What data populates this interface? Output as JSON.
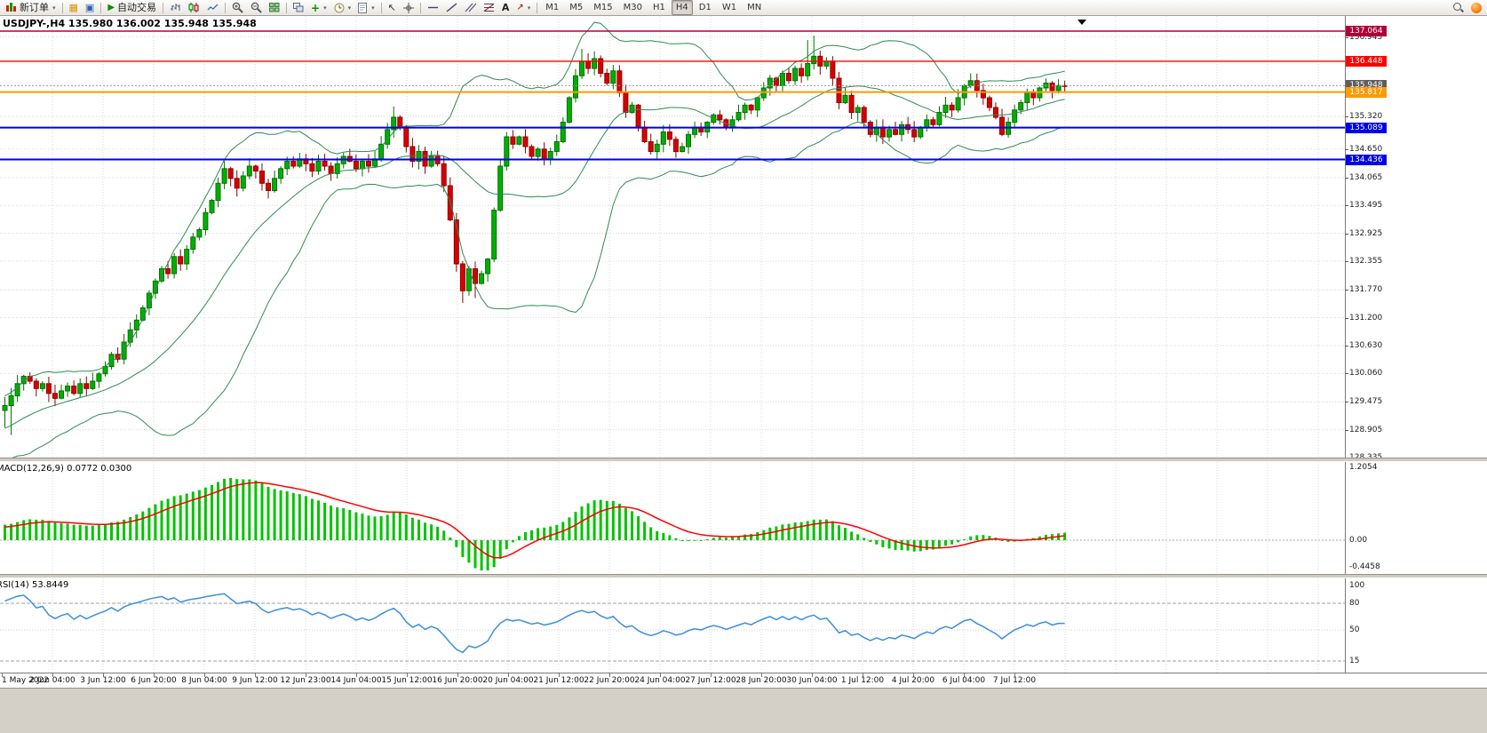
{
  "toolbar": {
    "new_order_label": "新订单",
    "auto_trading_label": "自动交易",
    "timeframes": [
      "M1",
      "M5",
      "M15",
      "M30",
      "H1",
      "H4",
      "D1",
      "W1",
      "MN"
    ],
    "active_timeframe": "H4",
    "items": [
      {
        "type": "button",
        "name": "new-order-button",
        "icon": "new-order",
        "label": "新订单",
        "dropdown": true
      },
      {
        "type": "sep"
      },
      {
        "type": "icon",
        "name": "market-watch-button",
        "icon": "market-watch"
      },
      {
        "type": "icon",
        "name": "navigator-button",
        "icon": "navigator"
      },
      {
        "type": "sep"
      },
      {
        "type": "button",
        "name": "auto-trading-button",
        "icon": "play",
        "label": "自动交易"
      },
      {
        "type": "sep"
      },
      {
        "type": "icon",
        "name": "bar-chart-button",
        "icon": "bars"
      },
      {
        "type": "icon",
        "name": "candlestick-chart-button",
        "icon": "candles"
      },
      {
        "type": "icon",
        "name": "line-chart-button",
        "icon": "line"
      },
      {
        "type": "sep"
      },
      {
        "type": "icon",
        "name": "zoom-in-button",
        "icon": "zoom-in"
      },
      {
        "type": "icon",
        "name": "zoom-out-button",
        "icon": "zoom-out"
      },
      {
        "type": "icon",
        "name": "tile-windows-button",
        "icon": "tile"
      },
      {
        "type": "sep"
      },
      {
        "type": "icon",
        "name": "cascade-windows-button",
        "icon": "cascade"
      },
      {
        "type": "icon",
        "name": "new-chart-button",
        "icon": "plus",
        "dropdown": true
      },
      {
        "type": "icon",
        "name": "periods-button",
        "icon": "clock",
        "dropdown": true
      },
      {
        "type": "icon",
        "name": "templates-button",
        "icon": "template",
        "dropdown": true
      },
      {
        "type": "sep"
      },
      {
        "type": "icon",
        "name": "cursor-button",
        "icon": "cursor"
      },
      {
        "type": "icon",
        "name": "crosshair-button",
        "icon": "crosshair"
      },
      {
        "type": "sep"
      },
      {
        "type": "icon",
        "name": "horizontal-line-button",
        "icon": "hline"
      },
      {
        "type": "icon",
        "name": "trendline-button",
        "icon": "tline"
      },
      {
        "type": "icon",
        "name": "equidistant-channel-button",
        "icon": "channel"
      },
      {
        "type": "icon",
        "name": "fibonacci-button",
        "icon": "fibo"
      },
      {
        "type": "icon",
        "name": "text-label-button",
        "icon": "text"
      },
      {
        "type": "icon",
        "name": "arrows-button",
        "icon": "arrow",
        "dropdown": true
      },
      {
        "type": "sep"
      },
      {
        "type": "timeframes"
      },
      {
        "type": "spacer"
      },
      {
        "type": "icon",
        "name": "search-button",
        "icon": "magnifier"
      },
      {
        "type": "icon",
        "name": "alert-badge",
        "icon": "dot"
      }
    ]
  },
  "chart": {
    "title": "USDJPY-,H4 135.980 136.002 135.948 135.948",
    "symbol": "USDJPY-",
    "timeframe": "H4"
  },
  "price_scale": {
    "labels": [
      "136.945",
      "135.320",
      "134.650",
      "134.065",
      "133.495",
      "132.925",
      "132.355",
      "131.770",
      "131.200",
      "130.630",
      "130.060",
      "129.475",
      "128.905",
      "128.335"
    ],
    "badges": [
      {
        "text": "137.064",
        "price": 137.064,
        "bg": "#B00038"
      },
      {
        "text": "136.448",
        "price": 136.448,
        "bg": "#FF0000"
      },
      {
        "text": "135.948",
        "price": 135.948,
        "bg": "#5E5E5E",
        "current": true
      },
      {
        "text": "135.817",
        "price": 135.817,
        "bg": "#FF9900"
      },
      {
        "text": "135.089",
        "price": 135.089,
        "bg": "#0000E6"
      },
      {
        "text": "134.436",
        "price": 134.436,
        "bg": "#0000E6"
      }
    ]
  },
  "macd_panel": {
    "label": "MACD(12,26,9) 0.0772 0.0300",
    "scale": [
      "1.2054",
      "0.00",
      "-0.4458"
    ],
    "histogram_color": "#00C400",
    "signal_color": "#FF0000"
  },
  "rsi_panel": {
    "label": "RSI(14) 53.8449",
    "scale": [
      "100",
      "80",
      "50",
      "15"
    ],
    "line_color": "#3B8EDE",
    "levels": [
      80,
      50,
      15
    ]
  },
  "time_axis": {
    "labels": [
      "1 May 2022",
      "2 Jun 04:00",
      "3 Jun 12:00",
      "6 Jun 20:00",
      "8 Jun 04:00",
      "9 Jun 12:00",
      "12 Jun 23:00",
      "14 Jun 04:00",
      "15 Jun 12:00",
      "16 Jun 20:00",
      "20 Jun 04:00",
      "21 Jun 12:00",
      "22 Jun 20:00",
      "24 Jun 04:00",
      "27 Jun 12:00",
      "28 Jun 20:00",
      "30 Jun 04:00",
      "1 Jul 12:00",
      "4 Jul 20:00",
      "6 Jul 04:00",
      "7 Jul 12:00"
    ]
  },
  "chart_data": {
    "type": "candlestick+indicators",
    "symbol": "USDJPY-",
    "period": "H4",
    "title": "USDJPY-,H4 135.980 136.002 135.948 135.948",
    "ohlc_display": {
      "open": 135.98,
      "high": 136.002,
      "low": 135.948,
      "close": 135.948
    },
    "current_price": 135.948,
    "price_range": [
      128.335,
      137.3
    ],
    "first_open": 129.3,
    "warmup_closes": [
      128.3,
      128.4,
      128.35,
      128.5,
      128.6,
      128.55,
      128.7,
      128.8,
      128.75,
      128.9,
      129.0,
      128.95,
      129.05,
      129.15,
      129.1,
      129.2,
      129.3,
      129.25,
      129.35,
      129.4
    ],
    "closes": [
      129.4,
      129.6,
      129.85,
      130.0,
      129.9,
      129.75,
      129.85,
      129.65,
      129.55,
      129.7,
      129.8,
      129.65,
      129.85,
      129.75,
      129.9,
      130.05,
      130.2,
      130.45,
      130.35,
      130.7,
      130.95,
      131.15,
      131.4,
      131.7,
      131.95,
      132.2,
      132.1,
      132.45,
      132.3,
      132.6,
      132.85,
      133.0,
      133.35,
      133.6,
      133.95,
      134.25,
      134.05,
      133.85,
      134.1,
      134.3,
      134.2,
      133.95,
      133.8,
      134.05,
      134.25,
      134.4,
      134.3,
      134.45,
      134.35,
      134.2,
      134.4,
      134.3,
      134.15,
      134.35,
      134.5,
      134.4,
      134.25,
      134.4,
      134.3,
      134.45,
      134.75,
      135.05,
      135.3,
      135.1,
      134.7,
      134.4,
      134.6,
      134.3,
      134.5,
      134.35,
      133.9,
      133.2,
      132.3,
      131.75,
      132.2,
      131.9,
      132.1,
      132.4,
      133.4,
      134.3,
      134.9,
      134.75,
      134.9,
      134.7,
      134.5,
      134.65,
      134.45,
      134.6,
      134.8,
      135.2,
      135.7,
      136.15,
      136.45,
      136.3,
      136.5,
      136.2,
      136.0,
      136.25,
      135.8,
      135.4,
      135.55,
      135.1,
      134.8,
      134.6,
      134.75,
      135.0,
      134.85,
      134.6,
      134.7,
      134.95,
      135.1,
      135.0,
      135.2,
      135.35,
      135.25,
      135.1,
      135.25,
      135.4,
      135.55,
      135.45,
      135.7,
      135.9,
      136.1,
      135.95,
      136.2,
      136.05,
      136.3,
      136.15,
      136.4,
      136.55,
      136.35,
      136.45,
      136.1,
      135.6,
      135.75,
      135.4,
      135.5,
      135.2,
      134.95,
      135.1,
      134.9,
      135.05,
      134.95,
      135.15,
      135.05,
      134.9,
      135.1,
      135.25,
      135.15,
      135.4,
      135.55,
      135.45,
      135.7,
      135.95,
      136.05,
      135.85,
      135.7,
      135.5,
      135.3,
      134.95,
      135.2,
      135.45,
      135.6,
      135.8,
      135.7,
      135.9,
      136.0,
      135.85,
      135.95,
      135.948
    ],
    "wick_overrides": {
      "0": {
        "low": 128.95
      },
      "1": {
        "low": 128.8
      },
      "62": {
        "high": 135.52
      },
      "73": {
        "low": 131.5
      },
      "75": {
        "low": 131.6
      },
      "92": {
        "high": 136.7
      },
      "94": {
        "high": 136.65
      },
      "128": {
        "high": 136.88
      },
      "129": {
        "high": 136.97
      }
    },
    "bollinger": {
      "period": 20,
      "deviation": 2,
      "color": "#2E8B57"
    },
    "macd": {
      "fast": 12,
      "slow": 26,
      "signal": 9,
      "current": 0.0772,
      "current_signal": 0.03
    },
    "rsi": {
      "period": 14,
      "current": 53.8449
    },
    "horizontal_lines": [
      {
        "price": 137.064,
        "color": "#B00038",
        "width": 1.4
      },
      {
        "price": 136.448,
        "color": "#FF0000",
        "width": 1.4
      },
      {
        "price": 135.817,
        "color": "#FF9900",
        "width": 2
      },
      {
        "price": 135.089,
        "color": "#0000E6",
        "width": 2
      },
      {
        "price": 134.436,
        "color": "#0000E6",
        "width": 2
      }
    ],
    "colors": {
      "bull_fill": "#00B000",
      "bull_stroke": "#007000",
      "bear_fill": "#D80000",
      "bear_stroke": "#8E0000",
      "grid": "#d8d8d8",
      "background": "#ffffff"
    }
  }
}
